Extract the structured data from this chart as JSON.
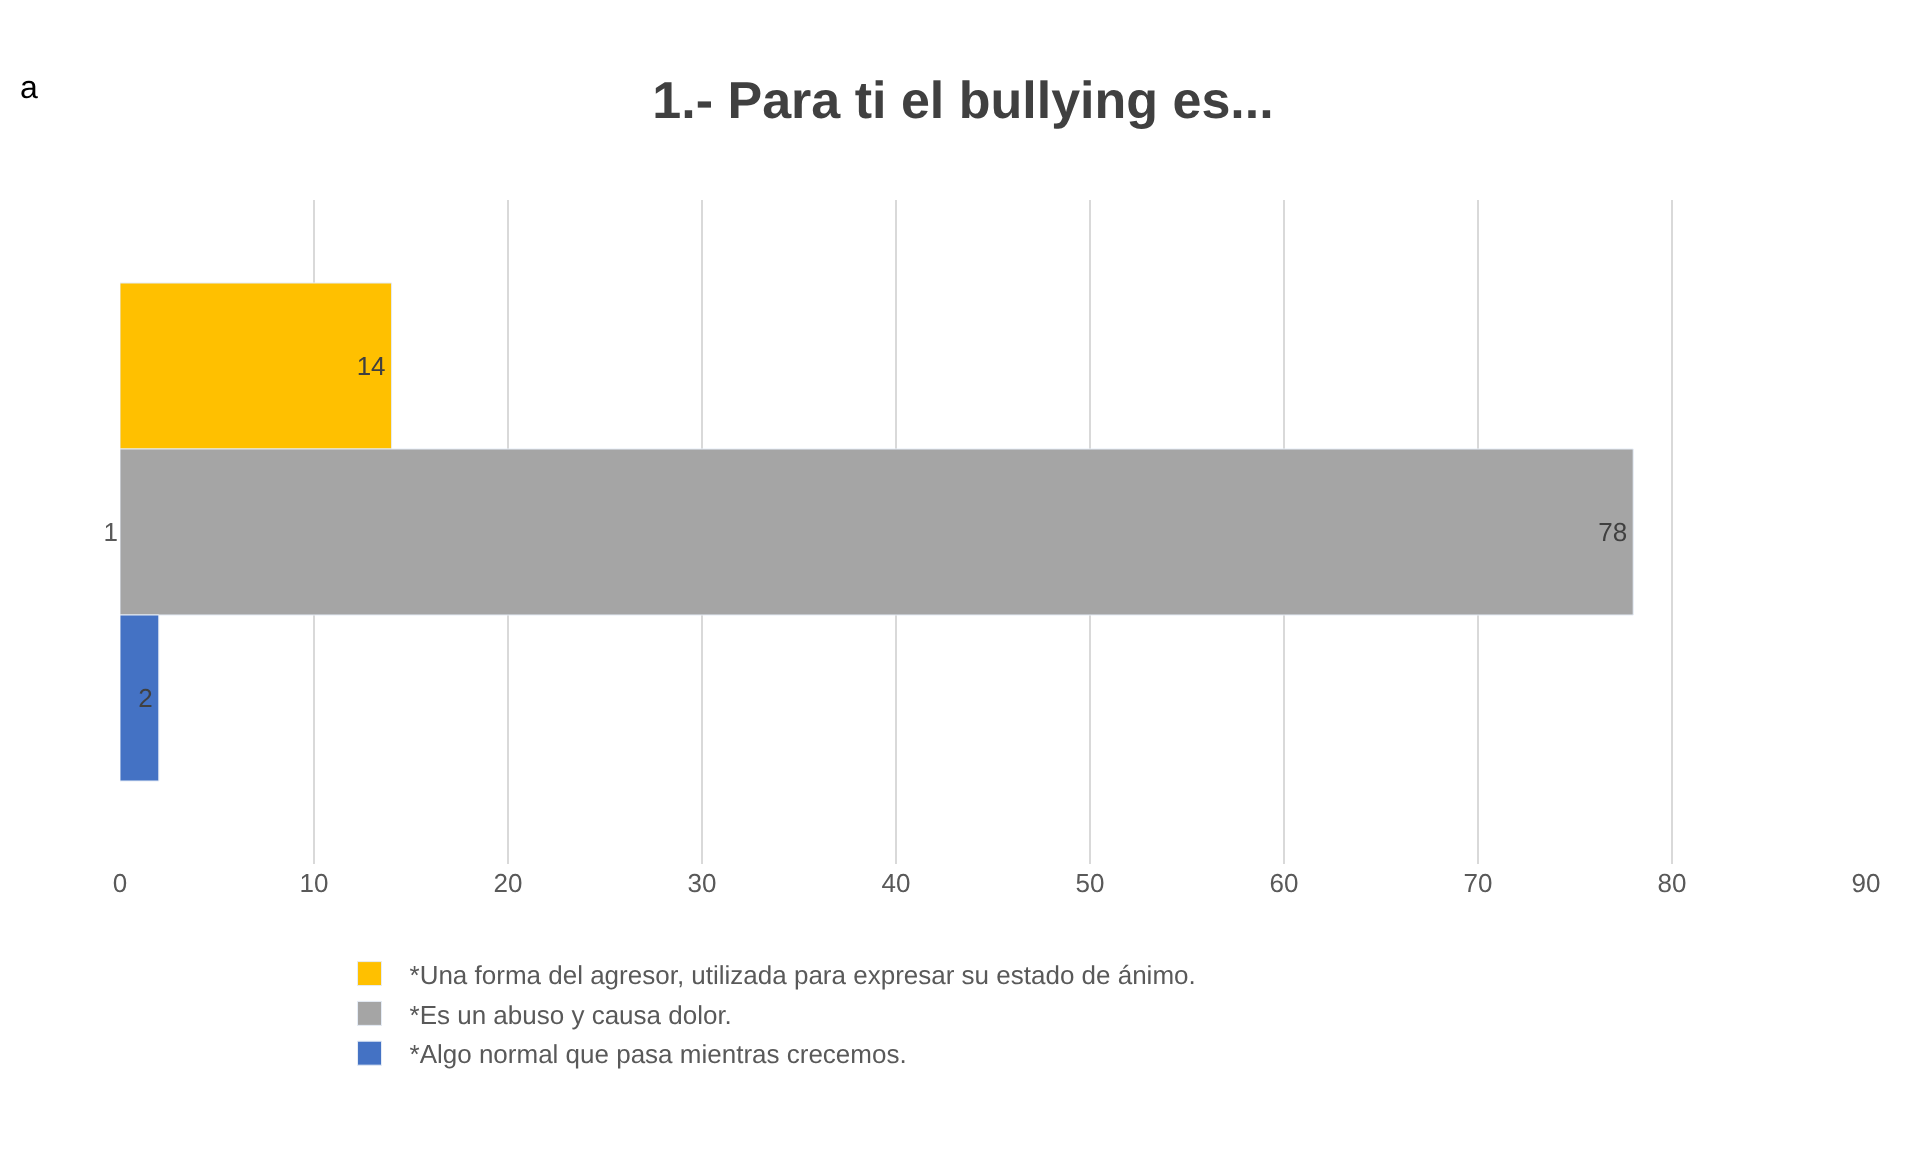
{
  "chart_data": {
    "type": "bar",
    "orientation": "horizontal",
    "title": "1.- Para ti el bullying es...",
    "categories": [
      null,
      "1",
      null
    ],
    "series": [
      {
        "name": "*Una forma del agresor, utilizada para expresar su estado de ánimo.",
        "color": "#ffc000",
        "values": [
          14,
          null,
          null
        ]
      },
      {
        "name": "*Es un abuso y causa dolor.",
        "color": "#a5a5a5",
        "values": [
          null,
          78,
          null
        ]
      },
      {
        "name": "*Algo normal que pasa mientras crecemos.",
        "color": "#4472c4",
        "values": [
          null,
          null,
          2
        ]
      }
    ],
    "xlim": [
      0,
      90
    ],
    "xticks": [
      0,
      10,
      20,
      30,
      40,
      50,
      60,
      70,
      80,
      90
    ],
    "grid": "x",
    "legend": "bottom",
    "data_labels": true,
    "annotations": [
      "a"
    ]
  }
}
